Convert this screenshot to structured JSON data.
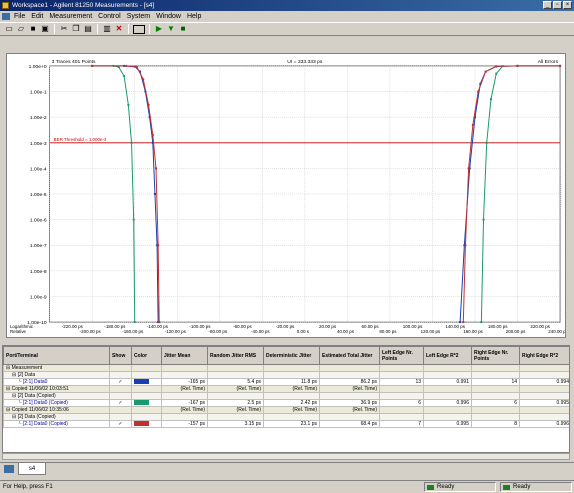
{
  "window": {
    "title": "Workspace1 - Agilent 81250 Measurements - [s4]"
  },
  "menu": [
    "File",
    "Edit",
    "Measurement",
    "Control",
    "System",
    "Window",
    "Help"
  ],
  "toolbar": {
    "icons": [
      "new-icon",
      "open-icon",
      "save-icon",
      "save-all-icon",
      "cut-icon",
      "copy-icon",
      "paste-icon",
      "print-icon",
      "delete-icon",
      "window-icon",
      "run-icon",
      "step-icon",
      "stop-icon"
    ]
  },
  "graph": {
    "info_left": "3 Traces  401 Points",
    "info_center": "UI = 333.333 ps",
    "info_right": "All Errors",
    "threshold_label": "BER Threshold = 1.000e-3",
    "x_axis_title": "Logarithmic Relative",
    "y_ticks": [
      "1.00e+0",
      "1.00e-1",
      "1.00e-2",
      "1.00e-3",
      "1.00e-4",
      "1.00e-5",
      "1.00e-6",
      "1.00e-7",
      "1.00e-8",
      "1.00e-9",
      "1.00e-10"
    ],
    "x_ticks_top": [
      "-220.00 ps",
      "-180.00 ps",
      "-140.00 ps",
      "-100.00 ps",
      "-60.00 ps",
      "-20.00 ps",
      "20.00 ps",
      "60.00 ps",
      "100.00 ps",
      "140.00 ps",
      "180.00 ps",
      "220.00 ps"
    ],
    "x_ticks_bottom": [
      "-200.00 ps",
      "-160.00 ps",
      "-120.00 ps",
      "-80.00 ps",
      "-40.00 ps",
      "0.00 s",
      "40.00 ps",
      "80.00 ps",
      "120.00 ps",
      "160.00 ps",
      "200.00 ps",
      "240.00 ps"
    ]
  },
  "chart_data": {
    "type": "line",
    "title": "",
    "xlabel": "Logarithmic Relative",
    "ylabel": "",
    "log_y": true,
    "ylim": [
      1e-10,
      1
    ],
    "xlim": [
      -240,
      240
    ],
    "grid": true,
    "legend": "none",
    "threshold": 0.001,
    "series": [
      {
        "color": "#1a3fb0",
        "left_x": [
          -200,
          -170,
          -160,
          -155,
          -150,
          -146,
          -143,
          -141,
          -139,
          -138
        ],
        "left_y": [
          1,
          1,
          0.95,
          0.6,
          0.1,
          0.01,
          0.001,
          1e-05,
          1e-07,
          1e-10
        ],
        "right_x": [
          146,
          150,
          155,
          160,
          165,
          170,
          180,
          200,
          240
        ],
        "right_y": [
          1e-10,
          1e-07,
          0.0001,
          0.01,
          0.2,
          0.6,
          0.95,
          1,
          1
        ]
      },
      {
        "color": "#1a9a6a",
        "left_x": [
          -200,
          -180,
          -175,
          -170,
          -166,
          -163,
          -161,
          -160
        ],
        "left_y": [
          1,
          1,
          0.9,
          0.4,
          0.03,
          0.001,
          1e-06,
          1e-10
        ],
        "right_x": [
          166,
          168,
          171,
          175,
          180,
          186,
          200,
          240
        ],
        "right_y": [
          1e-10,
          1e-06,
          0.001,
          0.05,
          0.5,
          0.98,
          1,
          1
        ]
      },
      {
        "color": "#c03030",
        "left_x": [
          -200,
          -168,
          -158,
          -152,
          -147,
          -143,
          -140,
          -138,
          -137
        ],
        "left_y": [
          1,
          1,
          0.9,
          0.3,
          0.03,
          0.002,
          0.0001,
          1e-07,
          1e-10
        ],
        "right_x": [
          149,
          151,
          154,
          158,
          163,
          170,
          180,
          200,
          240
        ],
        "right_y": [
          1e-10,
          1e-07,
          0.0001,
          0.005,
          0.1,
          0.6,
          0.97,
          1,
          1
        ]
      }
    ]
  },
  "table": {
    "headers": [
      "Port/Terminal",
      "Show",
      "Color",
      "Jitter Mean",
      "Random Jitter RMS",
      "Deterministic Jitter",
      "Estimated Total Jitter",
      "Left Edge Nr. Points",
      "Left Edge R*2",
      "Right Edge Nr. Points",
      "Right Edge R*2"
    ],
    "rows": [
      {
        "kind": "group",
        "label": "Measurement",
        "cells": [
          "",
          "",
          "",
          "",
          "",
          "",
          "",
          "",
          ""
        ]
      },
      {
        "kind": "sub",
        "label": "[2] Data",
        "cells": [
          "",
          "",
          "",
          "",
          "",
          "",
          "",
          "",
          ""
        ]
      },
      {
        "kind": "data",
        "label": "[2:1] Data0",
        "show": "✓",
        "color": "#1a3fb0",
        "cells": [
          "-165 ps",
          "5.4 ps",
          "11.8 ps",
          "86.2 ps",
          "13",
          "0.991",
          "14",
          "0.994"
        ]
      },
      {
        "kind": "group",
        "label": "Copied 11/06/02 10:03:51",
        "cells": [
          "(Rel. Time)",
          "(Rel. Time)",
          "(Rel. Time)",
          "(Rel. Time)",
          "",
          "",
          "",
          ""
        ]
      },
      {
        "kind": "sub",
        "label": "[2] Data (Copied)",
        "cells": [
          "",
          "",
          "",
          "",
          "",
          "",
          "",
          ""
        ]
      },
      {
        "kind": "data",
        "label": "[2:1] Data0 (Copied)",
        "show": "✓",
        "color": "#1a9a6a",
        "cells": [
          "-167 ps",
          "2.5 ps",
          "2.42 ps",
          "36.9 ps",
          "6",
          "0.996",
          "6",
          "0.995"
        ]
      },
      {
        "kind": "group",
        "label": "Copied 11/06/02 10:35:06",
        "cells": [
          "(Rel. Time)",
          "(Rel. Time)",
          "(Rel. Time)",
          "(Rel. Time)",
          "",
          "",
          "",
          ""
        ]
      },
      {
        "kind": "sub",
        "label": "[2] Data (Copied)",
        "cells": [
          "",
          "",
          "",
          "",
          "",
          "",
          "",
          ""
        ]
      },
      {
        "kind": "data",
        "label": "[2:1] Data0 (Copied)",
        "show": "✓",
        "color": "#c03030",
        "cells": [
          "-157 ps",
          "3.15 ps",
          "23.1 ps",
          "68.4 ps",
          "7",
          "0.995",
          "8",
          "0.996"
        ]
      }
    ]
  },
  "tabs": [
    {
      "label": "s4"
    }
  ],
  "status": {
    "left": "For Help, press F1",
    "pane1": "Ready",
    "pane2": "Ready"
  }
}
